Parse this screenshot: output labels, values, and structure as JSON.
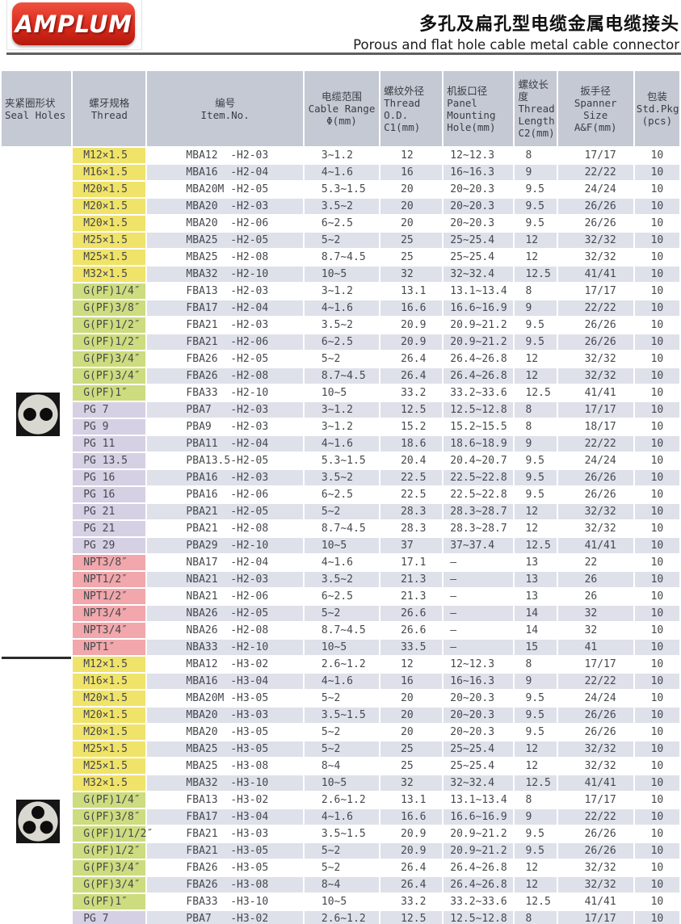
{
  "header": {
    "logo_text": "AMPLUM",
    "title_zh": "多孔及扁孔型电缆金属电缆接头",
    "title_en": "Porous and flat hole cable metal cable connector"
  },
  "colors": {
    "logo_red": "#d92a1c",
    "header_bg": "#c5c9d3",
    "row_stripe": "#dee1e9",
    "m_thread": "#f0e369",
    "g_thread": "#cddc7e",
    "pg_thread": "#d6d0e4",
    "npt_thread": "#f1a7ab"
  },
  "table": {
    "columns": [
      "夹紧圈形状\nSeal Holes",
      "螺牙规格\nThread",
      "编号\nItem.No.",
      "电缆范围\nCable Range\nΦ(mm)",
      "螺纹外径\nThread\nO.D.\nC1(mm)",
      "机扳口径\nPanel\nMounting\nHole(mm)",
      "螺纹长度\nThread\nLength\nC2(mm)",
      "扳手径\nSpanner Size\nA&F(mm)",
      "包装\nStd.Pkg\n(pcs)"
    ],
    "seal_groups": [
      {
        "rows": 30,
        "icon": "seal-2-hole-icon",
        "holes": 2
      },
      {
        "rows": 16,
        "icon": "seal-3-hole-icon",
        "holes": 3
      }
    ],
    "rows": [
      {
        "type": "m",
        "thread": "M12×1.5",
        "item_no": "MBA12  -H2-03",
        "cable_range": "3~1.2",
        "thread_od": "12",
        "panel_hole": "12~12.3",
        "thread_length": "8",
        "spanner": "17/17",
        "pkg": "10"
      },
      {
        "type": "m",
        "thread": "M16×1.5",
        "item_no": "MBA16  -H2-04",
        "cable_range": "4~1.6",
        "thread_od": "16",
        "panel_hole": "16~16.3",
        "thread_length": "9",
        "spanner": "22/22",
        "pkg": "10"
      },
      {
        "type": "m",
        "thread": "M20×1.5",
        "item_no": "MBA20M -H2-05",
        "cable_range": "5.3~1.5",
        "thread_od": "20",
        "panel_hole": "20~20.3",
        "thread_length": "9.5",
        "spanner": "24/24",
        "pkg": "10"
      },
      {
        "type": "m",
        "thread": "M20×1.5",
        "item_no": "MBA20  -H2-03",
        "cable_range": "3.5~2",
        "thread_od": "20",
        "panel_hole": "20~20.3",
        "thread_length": "9.5",
        "spanner": "26/26",
        "pkg": "10"
      },
      {
        "type": "m",
        "thread": "M20×1.5",
        "item_no": "MBA20  -H2-06",
        "cable_range": "6~2.5",
        "thread_od": "20",
        "panel_hole": "20~20.3",
        "thread_length": "9.5",
        "spanner": "26/26",
        "pkg": "10"
      },
      {
        "type": "m",
        "thread": "M25×1.5",
        "item_no": "MBA25  -H2-05",
        "cable_range": "5~2",
        "thread_od": "25",
        "panel_hole": "25~25.4",
        "thread_length": "12",
        "spanner": "32/32",
        "pkg": "10"
      },
      {
        "type": "m",
        "thread": "M25×1.5",
        "item_no": "MBA25  -H2-08",
        "cable_range": "8.7~4.5",
        "thread_od": "25",
        "panel_hole": "25~25.4",
        "thread_length": "12",
        "spanner": "32/32",
        "pkg": "10"
      },
      {
        "type": "m",
        "thread": "M32×1.5",
        "item_no": "MBA32  -H2-10",
        "cable_range": "10~5",
        "thread_od": "32",
        "panel_hole": "32~32.4",
        "thread_length": "12.5",
        "spanner": "41/41",
        "pkg": "10"
      },
      {
        "type": "g",
        "thread": "G(PF)1/4″",
        "item_no": "FBA13  -H2-03",
        "cable_range": "3~1.2",
        "thread_od": "13.1",
        "panel_hole": "13.1~13.4",
        "thread_length": "8",
        "spanner": "17/17",
        "pkg": "10"
      },
      {
        "type": "g",
        "thread": "G(PF)3/8″",
        "item_no": "FBA17  -H2-04",
        "cable_range": "4~1.6",
        "thread_od": "16.6",
        "panel_hole": "16.6~16.9",
        "thread_length": "9",
        "spanner": "22/22",
        "pkg": "10"
      },
      {
        "type": "g",
        "thread": "G(PF)1/2″",
        "item_no": "FBA21  -H2-03",
        "cable_range": "3.5~2",
        "thread_od": "20.9",
        "panel_hole": "20.9~21.2",
        "thread_length": "9.5",
        "spanner": "26/26",
        "pkg": "10"
      },
      {
        "type": "g",
        "thread": "G(PF)1/2″",
        "item_no": "FBA21  -H2-06",
        "cable_range": "6~2.5",
        "thread_od": "20.9",
        "panel_hole": "20.9~21.2",
        "thread_length": "9.5",
        "spanner": "26/26",
        "pkg": "10"
      },
      {
        "type": "g",
        "thread": "G(PF)3/4″",
        "item_no": "FBA26  -H2-05",
        "cable_range": "5~2",
        "thread_od": "26.4",
        "panel_hole": "26.4~26.8",
        "thread_length": "12",
        "spanner": "32/32",
        "pkg": "10"
      },
      {
        "type": "g",
        "thread": "G(PF)3/4″",
        "item_no": "FBA26  -H2-08",
        "cable_range": "8.7~4.5",
        "thread_od": "26.4",
        "panel_hole": "26.4~26.8",
        "thread_length": "12",
        "spanner": "32/32",
        "pkg": "10"
      },
      {
        "type": "g",
        "thread": "G(PF)1″",
        "item_no": "FBA33  -H2-10",
        "cable_range": "10~5",
        "thread_od": "33.2",
        "panel_hole": "33.2~33.6",
        "thread_length": "12.5",
        "spanner": "41/41",
        "pkg": "10"
      },
      {
        "type": "pg",
        "thread": "PG 7",
        "item_no": "PBA7   -H2-03",
        "cable_range": "3~1.2",
        "thread_od": "12.5",
        "panel_hole": "12.5~12.8",
        "thread_length": "8",
        "spanner": "17/17",
        "pkg": "10"
      },
      {
        "type": "pg",
        "thread": "PG 9",
        "item_no": "PBA9   -H2-03",
        "cable_range": "3~1.2",
        "thread_od": "15.2",
        "panel_hole": "15.2~15.5",
        "thread_length": "8",
        "spanner": "18/17",
        "pkg": "10"
      },
      {
        "type": "pg",
        "thread": "PG 11",
        "item_no": "PBA11  -H2-04",
        "cable_range": "4~1.6",
        "thread_od": "18.6",
        "panel_hole": "18.6~18.9",
        "thread_length": "9",
        "spanner": "22/22",
        "pkg": "10"
      },
      {
        "type": "pg",
        "thread": "PG 13.5",
        "item_no": "PBA13.5-H2-05",
        "cable_range": "5.3~1.5",
        "thread_od": "20.4",
        "panel_hole": "20.4~20.7",
        "thread_length": "9.5",
        "spanner": "24/24",
        "pkg": "10"
      },
      {
        "type": "pg",
        "thread": "PG 16",
        "item_no": "PBA16  -H2-03",
        "cable_range": "3.5~2",
        "thread_od": "22.5",
        "panel_hole": "22.5~22.8",
        "thread_length": "9.5",
        "spanner": "26/26",
        "pkg": "10"
      },
      {
        "type": "pg",
        "thread": "PG 16",
        "item_no": "PBA16  -H2-06",
        "cable_range": "6~2.5",
        "thread_od": "22.5",
        "panel_hole": "22.5~22.8",
        "thread_length": "9.5",
        "spanner": "26/26",
        "pkg": "10"
      },
      {
        "type": "pg",
        "thread": "PG 21",
        "item_no": "PBA21  -H2-05",
        "cable_range": "5~2",
        "thread_od": "28.3",
        "panel_hole": "28.3~28.7",
        "thread_length": "12",
        "spanner": "32/32",
        "pkg": "10"
      },
      {
        "type": "pg",
        "thread": "PG 21",
        "item_no": "PBA21  -H2-08",
        "cable_range": "8.7~4.5",
        "thread_od": "28.3",
        "panel_hole": "28.3~28.7",
        "thread_length": "12",
        "spanner": "32/32",
        "pkg": "10"
      },
      {
        "type": "pg",
        "thread": "PG 29",
        "item_no": "PBA29  -H2-10",
        "cable_range": "10~5",
        "thread_od": "37",
        "panel_hole": "37~37.4",
        "thread_length": "12.5",
        "spanner": "41/41",
        "pkg": "10"
      },
      {
        "type": "npt",
        "thread": "NPT3/8″",
        "item_no": "NBA17  -H2-04",
        "cable_range": "4~1.6",
        "thread_od": "17.1",
        "panel_hole": "–",
        "thread_length": "13",
        "spanner": "22",
        "pkg": "10"
      },
      {
        "type": "npt",
        "thread": "NPT1/2″",
        "item_no": "NBA21  -H2-03",
        "cable_range": "3.5~2",
        "thread_od": "21.3",
        "panel_hole": "–",
        "thread_length": "13",
        "spanner": "26",
        "pkg": "10"
      },
      {
        "type": "npt",
        "thread": "NPT1/2″",
        "item_no": "NBA21  -H2-06",
        "cable_range": "6~2.5",
        "thread_od": "21.3",
        "panel_hole": "–",
        "thread_length": "13",
        "spanner": "26",
        "pkg": "10"
      },
      {
        "type": "npt",
        "thread": "NPT3/4″",
        "item_no": "NBA26  -H2-05",
        "cable_range": "5~2",
        "thread_od": "26.6",
        "panel_hole": "–",
        "thread_length": "14",
        "spanner": "32",
        "pkg": "10"
      },
      {
        "type": "npt",
        "thread": "NPT3/4″",
        "item_no": "NBA26  -H2-08",
        "cable_range": "8.7~4.5",
        "thread_od": "26.6",
        "panel_hole": "–",
        "thread_length": "14",
        "spanner": "32",
        "pkg": "10"
      },
      {
        "type": "npt",
        "thread": "NPT1″",
        "item_no": "NBA33  -H2-10",
        "cable_range": "10~5",
        "thread_od": "33.5",
        "panel_hole": "–",
        "thread_length": "15",
        "spanner": "41",
        "pkg": "10"
      },
      {
        "type": "m",
        "thread": "M12×1.5",
        "item_no": "MBA12  -H3-02",
        "cable_range": "2.6~1.2",
        "thread_od": "12",
        "panel_hole": "12~12.3",
        "thread_length": "8",
        "spanner": "17/17",
        "pkg": "10"
      },
      {
        "type": "m",
        "thread": "M16×1.5",
        "item_no": "MBA16  -H3-04",
        "cable_range": "4~1.6",
        "thread_od": "16",
        "panel_hole": "16~16.3",
        "thread_length": "9",
        "spanner": "22/22",
        "pkg": "10"
      },
      {
        "type": "m",
        "thread": "M20×1.5",
        "item_no": "MBA20M -H3-05",
        "cable_range": "5~2",
        "thread_od": "20",
        "panel_hole": "20~20.3",
        "thread_length": "9.5",
        "spanner": "24/24",
        "pkg": "10"
      },
      {
        "type": "m",
        "thread": "M20×1.5",
        "item_no": "MBA20  -H3-03",
        "cable_range": "3.5~1.5",
        "thread_od": "20",
        "panel_hole": "20~20.3",
        "thread_length": "9.5",
        "spanner": "26/26",
        "pkg": "10"
      },
      {
        "type": "m",
        "thread": "M20×1.5",
        "item_no": "MBA20  -H3-05",
        "cable_range": "5~2",
        "thread_od": "20",
        "panel_hole": "20~20.3",
        "thread_length": "9.5",
        "spanner": "26/26",
        "pkg": "10"
      },
      {
        "type": "m",
        "thread": "M25×1.5",
        "item_no": "MBA25  -H3-05",
        "cable_range": "5~2",
        "thread_od": "25",
        "panel_hole": "25~25.4",
        "thread_length": "12",
        "spanner": "32/32",
        "pkg": "10"
      },
      {
        "type": "m",
        "thread": "M25×1.5",
        "item_no": "MBA25  -H3-08",
        "cable_range": "8~4",
        "thread_od": "25",
        "panel_hole": "25~25.4",
        "thread_length": "12",
        "spanner": "32/32",
        "pkg": "10"
      },
      {
        "type": "m",
        "thread": "M32×1.5",
        "item_no": "MBA32  -H3-10",
        "cable_range": "10~5",
        "thread_od": "32",
        "panel_hole": "32~32.4",
        "thread_length": "12.5",
        "spanner": "41/41",
        "pkg": "10"
      },
      {
        "type": "g",
        "thread": "G(PF)1/4″",
        "item_no": "FBA13  -H3-02",
        "cable_range": "2.6~1.2",
        "thread_od": "13.1",
        "panel_hole": "13.1~13.4",
        "thread_length": "8",
        "spanner": "17/17",
        "pkg": "10"
      },
      {
        "type": "g",
        "thread": "G(PF)3/8″",
        "item_no": "FBA17  -H3-04",
        "cable_range": "4~1.6",
        "thread_od": "16.6",
        "panel_hole": "16.6~16.9",
        "thread_length": "9",
        "spanner": "22/22",
        "pkg": "10"
      },
      {
        "type": "g",
        "thread": "G(PF)1/1/2″",
        "item_no": "FBA21  -H3-03",
        "cable_range": "3.5~1.5",
        "thread_od": "20.9",
        "panel_hole": "20.9~21.2",
        "thread_length": "9.5",
        "spanner": "26/26",
        "pkg": "10"
      },
      {
        "type": "g",
        "thread": "G(PF)1/2″",
        "item_no": "FBA21  -H3-05",
        "cable_range": "5~2",
        "thread_od": "20.9",
        "panel_hole": "20.9~21.2",
        "thread_length": "9.5",
        "spanner": "26/26",
        "pkg": "10"
      },
      {
        "type": "g",
        "thread": "G(PF)3/4″",
        "item_no": "FBA26  -H3-05",
        "cable_range": "5~2",
        "thread_od": "26.4",
        "panel_hole": "26.4~26.8",
        "thread_length": "12",
        "spanner": "32/32",
        "pkg": "10"
      },
      {
        "type": "g",
        "thread": "G(PF)3/4″",
        "item_no": "FBA26  -H3-08",
        "cable_range": "8~4",
        "thread_od": "26.4",
        "panel_hole": "26.4~26.8",
        "thread_length": "12",
        "spanner": "32/32",
        "pkg": "10"
      },
      {
        "type": "g",
        "thread": "G(PF)1″",
        "item_no": "FBA33  -H3-10",
        "cable_range": "10~5",
        "thread_od": "33.2",
        "panel_hole": "33.2~33.6",
        "thread_length": "12.5",
        "spanner": "41/41",
        "pkg": "10"
      },
      {
        "type": "pg",
        "thread": "PG 7",
        "item_no": "PBA7   -H3-02",
        "cable_range": "2.6~1.2",
        "thread_od": "12.5",
        "panel_hole": "12.5~12.8",
        "thread_length": "8",
        "spanner": "17/17",
        "pkg": "10"
      }
    ]
  }
}
